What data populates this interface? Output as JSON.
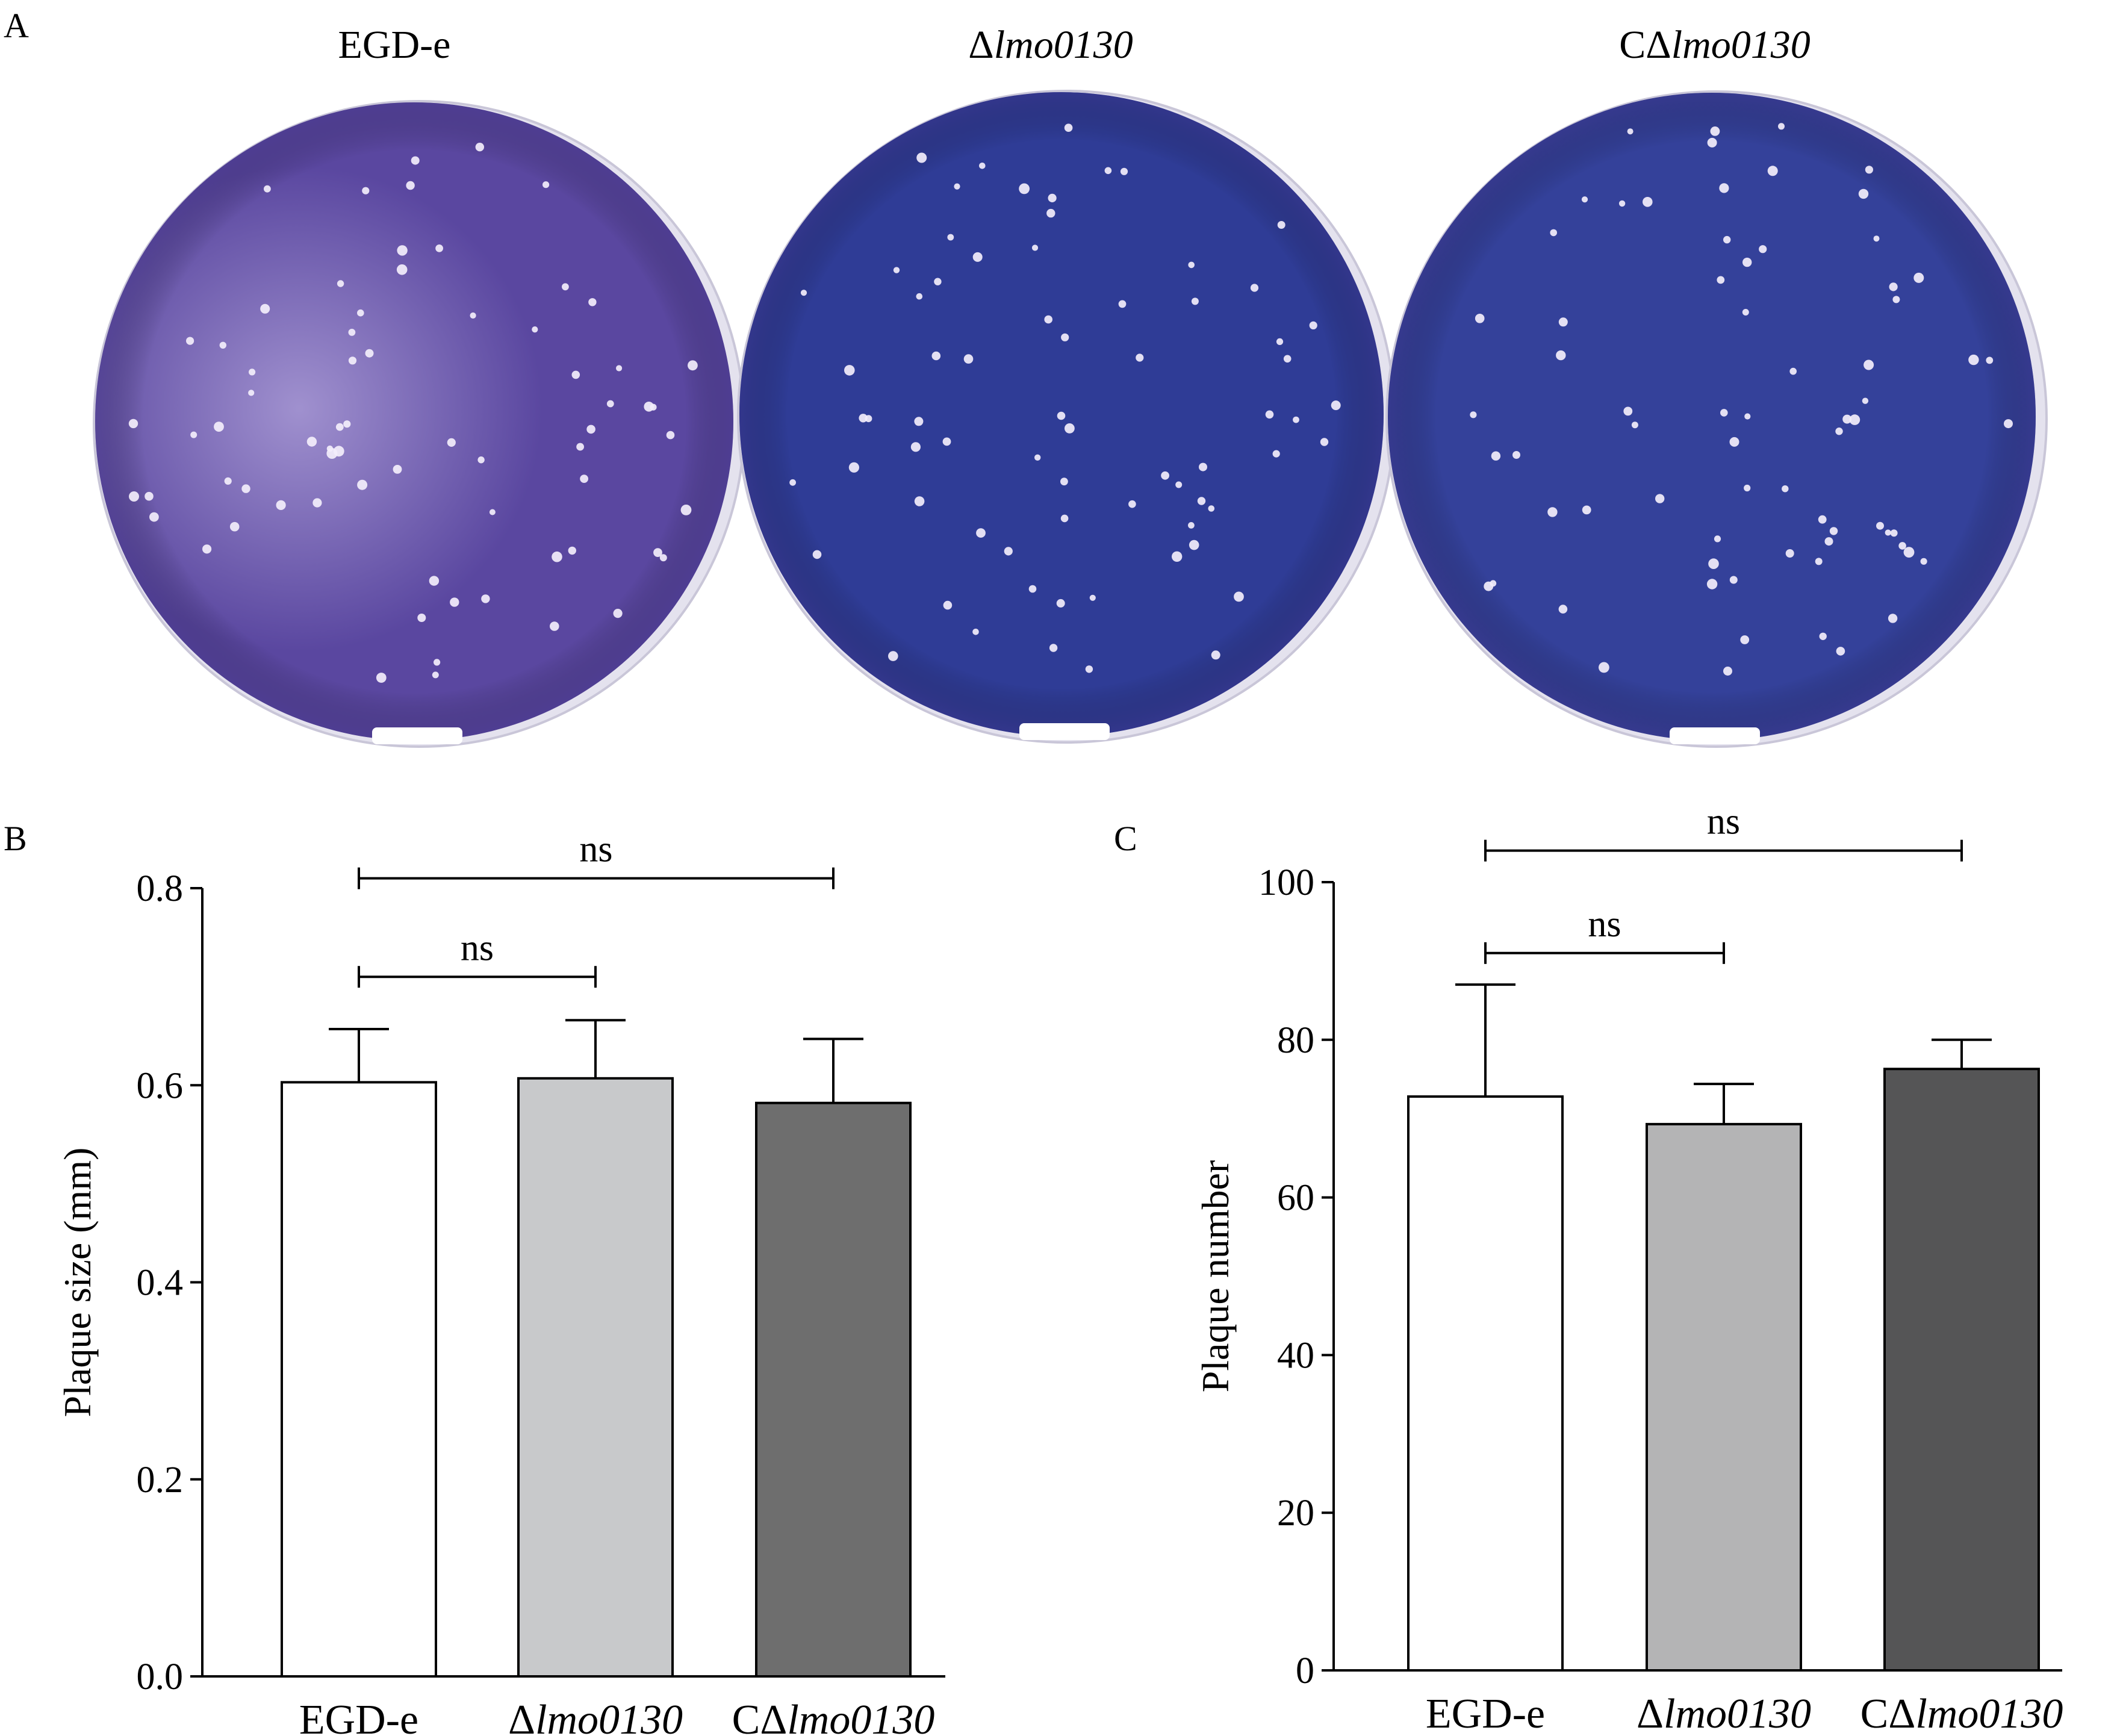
{
  "panel_a": {
    "letter": "A",
    "plates": [
      {
        "title_prefix": "",
        "title_italic": "EGD-e",
        "title_italic_flag": false,
        "color": "#5a47a0"
      },
      {
        "title_prefix": "Δ",
        "title_italic": "lmo0130",
        "title_italic_flag": true,
        "color": "#2f3c96"
      },
      {
        "title_prefix": "CΔ",
        "title_italic": "lmo0130",
        "title_italic_flag": true,
        "color": "#34419a"
      }
    ]
  },
  "chart_data": [
    {
      "panel": "B",
      "type": "bar",
      "ylabel": "Plaque size (mm)",
      "ylim": [
        0,
        0.8
      ],
      "yticks": [
        "0.0",
        "0.2",
        "0.4",
        "0.6",
        "0.8"
      ],
      "categories": [
        {
          "prefix": "",
          "italic": "",
          "plain": "EGD-e"
        },
        {
          "prefix": "Δ",
          "italic": "lmo0130",
          "plain": ""
        },
        {
          "prefix": "CΔ",
          "italic": "lmo0130",
          "plain": ""
        }
      ],
      "values": [
        0.603,
        0.607,
        0.582
      ],
      "errors": [
        0.054,
        0.059,
        0.065
      ],
      "colors": [
        "#ffffff",
        "#c8c9cb",
        "#6e6e6e"
      ],
      "significance": [
        {
          "from": 0,
          "to": 2,
          "label": "ns",
          "y": 0.81
        },
        {
          "from": 0,
          "to": 1,
          "label": "ns",
          "y": 0.71
        }
      ]
    },
    {
      "panel": "C",
      "type": "bar",
      "ylabel": "Plaque number",
      "ylim": [
        0,
        100
      ],
      "yticks": [
        "0",
        "20",
        "40",
        "60",
        "80",
        "100"
      ],
      "categories": [
        {
          "prefix": "",
          "italic": "",
          "plain": "EGD-e"
        },
        {
          "prefix": "Δ",
          "italic": "lmo0130",
          "plain": ""
        },
        {
          "prefix": "CΔ",
          "italic": "lmo0130",
          "plain": ""
        }
      ],
      "values": [
        72.8,
        69.3,
        76.3
      ],
      "errors": [
        14.2,
        5.1,
        3.7
      ],
      "colors": [
        "#ffffff",
        "#b4b4b5",
        "#555556"
      ],
      "significance": [
        {
          "from": 0,
          "to": 2,
          "label": "ns",
          "y": 104
        },
        {
          "from": 0,
          "to": 1,
          "label": "ns",
          "y": 91
        }
      ]
    }
  ]
}
